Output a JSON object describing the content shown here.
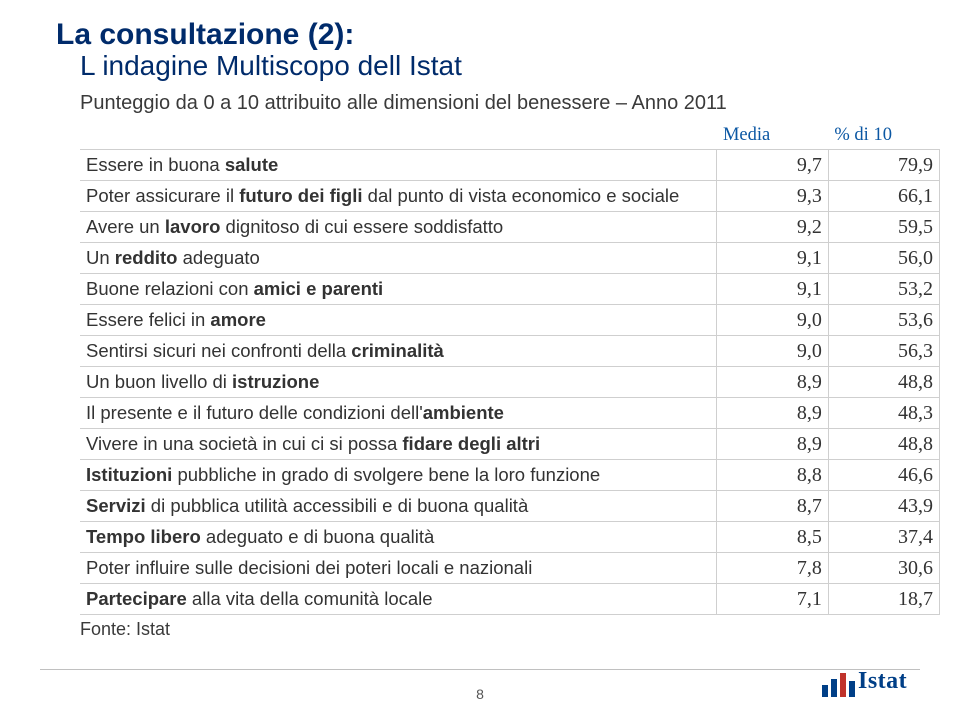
{
  "title": {
    "line1": "La consultazione (2):",
    "line2": "L indagine Multiscopo dell Istat"
  },
  "subtitle": "Punteggio da 0 a 10 attribuito alle dimensioni del benessere – Anno 2011",
  "table": {
    "headers": {
      "media": "Media",
      "pct": "% di 10"
    },
    "col_widths": {
      "label": 640,
      "media": 100,
      "pct": 100
    },
    "font": {
      "label_size": 18.5,
      "num_family": "Georgia",
      "num_size": 20,
      "header_color": "#0b57a3"
    },
    "border_color": "#cfcfcf",
    "rows": [
      {
        "label_parts": [
          "Essere in buona ",
          {
            "b": "salute"
          }
        ],
        "media": "9,7",
        "pct": "79,9"
      },
      {
        "label_parts": [
          "Poter assicurare il ",
          {
            "b": "futuro dei figli"
          },
          " dal punto di vista economico e sociale"
        ],
        "media": "9,3",
        "pct": "66,1"
      },
      {
        "label_parts": [
          "Avere un ",
          {
            "b": "lavoro"
          },
          " dignitoso di cui essere soddisfatto"
        ],
        "media": "9,2",
        "pct": "59,5"
      },
      {
        "label_parts": [
          "Un ",
          {
            "b": "reddito"
          },
          " adeguato"
        ],
        "media": "9,1",
        "pct": "56,0"
      },
      {
        "label_parts": [
          "Buone relazioni con ",
          {
            "b": "amici e parenti"
          }
        ],
        "media": "9,1",
        "pct": "53,2"
      },
      {
        "label_parts": [
          "Essere felici in ",
          {
            "b": "amore"
          }
        ],
        "media": "9,0",
        "pct": "53,6"
      },
      {
        "label_parts": [
          "Sentirsi sicuri nei confronti della ",
          {
            "b": "criminalità"
          }
        ],
        "media": "9,0",
        "pct": "56,3"
      },
      {
        "label_parts": [
          "Un buon livello di ",
          {
            "b": "istruzione"
          }
        ],
        "media": "8,9",
        "pct": "48,8"
      },
      {
        "label_parts": [
          "Il presente e il futuro delle condizioni dell'",
          {
            "b": "ambiente"
          }
        ],
        "media": "8,9",
        "pct": "48,3"
      },
      {
        "label_parts": [
          "Vivere in una società in cui ci si possa ",
          {
            "b": "fidare degli altri"
          }
        ],
        "media": "8,9",
        "pct": "48,8"
      },
      {
        "label_parts": [
          {
            "b": "Istituzioni"
          },
          " pubbliche in grado di svolgere bene la loro funzione"
        ],
        "media": "8,8",
        "pct": "46,6"
      },
      {
        "label_parts": [
          {
            "b": "Servizi"
          },
          " di pubblica utilità accessibili e di buona qualità"
        ],
        "media": "8,7",
        "pct": "43,9"
      },
      {
        "label_parts": [
          {
            "b": "Tempo libero"
          },
          " adeguato e di buona qualità"
        ],
        "media": "8,5",
        "pct": "37,4"
      },
      {
        "label_parts": [
          "Poter influire sulle decisioni dei poteri locali e nazionali"
        ],
        "media": "7,8",
        "pct": "30,6"
      },
      {
        "label_parts": [
          {
            "b": "Partecipare"
          },
          " alla vita della comunità locale"
        ],
        "media": "7,1",
        "pct": "18,7"
      }
    ]
  },
  "source_label": "Fonte: Istat",
  "page_number": "8",
  "logo": {
    "text": "Istat",
    "bar_colors": [
      "#003f87",
      "#003f87",
      "#c0332b",
      "#003f87"
    ],
    "text_color": "#003f87"
  },
  "colors": {
    "title": "#002b6b",
    "body_text": "#333333",
    "rule": "#c0c0c0",
    "background": "#ffffff"
  }
}
